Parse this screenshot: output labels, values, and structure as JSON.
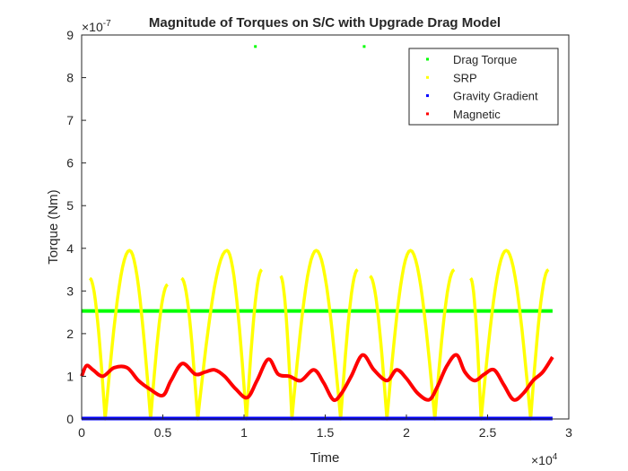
{
  "chart_data": {
    "type": "scatter",
    "title": "Magnitude of Torques on S/C with Upgrade Drag Model",
    "xlabel": "Time",
    "ylabel": "Torque (Nm)",
    "x_multiplier": "×10",
    "x_exponent": "4",
    "y_multiplier": "×10",
    "y_exponent": "-7",
    "xlim": [
      0,
      30000
    ],
    "ylim": [
      0,
      9
    ],
    "x_ticks": [
      {
        "value": 0,
        "label": "0"
      },
      {
        "value": 5000,
        "label": "0.5"
      },
      {
        "value": 10000,
        "label": "1"
      },
      {
        "value": 15000,
        "label": "1.5"
      },
      {
        "value": 20000,
        "label": "2"
      },
      {
        "value": 25000,
        "label": "2.5"
      },
      {
        "value": 30000,
        "label": "3"
      }
    ],
    "y_ticks": [
      {
        "value": 0,
        "label": "0"
      },
      {
        "value": 1,
        "label": "1"
      },
      {
        "value": 2,
        "label": "2"
      },
      {
        "value": 3,
        "label": "3"
      },
      {
        "value": 4,
        "label": "4"
      },
      {
        "value": 5,
        "label": "5"
      },
      {
        "value": 6,
        "label": "6"
      },
      {
        "value": 7,
        "label": "7"
      },
      {
        "value": 8,
        "label": "8"
      },
      {
        "value": 9,
        "label": "9"
      }
    ],
    "grid": false,
    "legend_position": "top-right",
    "series": [
      {
        "name": "Drag Torque",
        "color": "#00ff00",
        "x": [
          0,
          29000
        ],
        "y": [
          2.53,
          2.53
        ],
        "outliers": [
          [
            10700,
            8.73
          ],
          [
            17400,
            8.73
          ]
        ]
      },
      {
        "name": "SRP",
        "color": "#ffff00",
        "x": [
          500,
          1450,
          2950,
          4250,
          5300,
          6150,
          7150,
          8950,
          10150,
          11100,
          12250,
          12950,
          14450,
          15950,
          17000,
          17750,
          18800,
          20250,
          21750,
          22950,
          23950,
          24600,
          26150,
          27650,
          28750
        ],
        "y": [
          3.3,
          0.0,
          3.95,
          0.0,
          3.15,
          3.3,
          0.0,
          3.95,
          0.0,
          3.5,
          3.35,
          0.0,
          3.95,
          0.0,
          3.5,
          3.35,
          0.0,
          3.95,
          0.0,
          3.5,
          3.3,
          0.0,
          3.95,
          0.0,
          3.5
        ],
        "segments": [
          [
            0,
            1,
            2,
            3,
            4
          ],
          [
            5,
            6,
            7,
            8,
            9
          ],
          [
            10,
            11,
            12,
            13,
            14
          ],
          [
            15,
            16,
            17,
            18,
            19
          ],
          [
            20,
            21,
            22,
            23,
            24
          ]
        ]
      },
      {
        "name": "Gravity Gradient",
        "color": "#0000ff",
        "x": [
          0,
          29000
        ],
        "y": [
          0.01,
          0.01
        ]
      },
      {
        "name": "Magnetic",
        "color": "#ff0000",
        "x": [
          0,
          300,
          700,
          1300,
          2000,
          2800,
          3500,
          4200,
          5000,
          5500,
          6200,
          7000,
          7600,
          8200,
          8800,
          9500,
          10200,
          10800,
          11500,
          12100,
          12800,
          13500,
          14300,
          14900,
          15500,
          16000,
          16600,
          17300,
          18000,
          18800,
          19400,
          20000,
          20700,
          21400,
          21900,
          22500,
          23100,
          23600,
          24200,
          24800,
          25400,
          26000,
          26600,
          27200,
          27800,
          28400,
          29000
        ],
        "y": [
          1.0,
          1.25,
          1.15,
          1.0,
          1.2,
          1.2,
          0.9,
          0.7,
          0.55,
          0.9,
          1.3,
          1.05,
          1.1,
          1.15,
          1.0,
          0.7,
          0.5,
          0.9,
          1.4,
          1.05,
          1.0,
          0.9,
          1.15,
          0.85,
          0.45,
          0.6,
          1.0,
          1.5,
          1.15,
          0.9,
          1.15,
          0.95,
          0.6,
          0.45,
          0.75,
          1.25,
          1.5,
          1.1,
          0.9,
          1.05,
          1.15,
          0.8,
          0.45,
          0.6,
          0.9,
          1.1,
          1.45
        ]
      }
    ]
  }
}
